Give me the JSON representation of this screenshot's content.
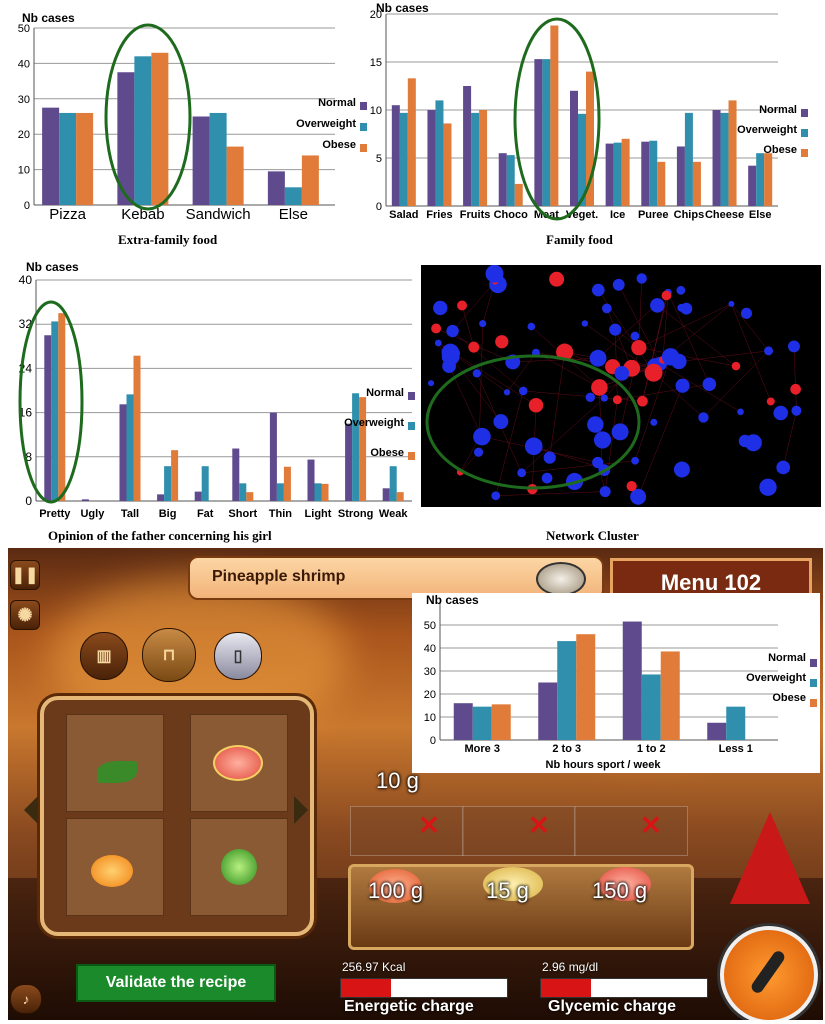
{
  "chart_data": [
    {
      "type": "bar",
      "title": "Extra-family food",
      "ylabel": "Nb cases",
      "ylim": [
        0,
        50
      ],
      "yticks": [
        0,
        10,
        20,
        30,
        40,
        50
      ],
      "categories": [
        "Pizza",
        "Kebab",
        "Sandwich",
        "Else"
      ],
      "series": [
        {
          "name": "Normal",
          "color": "#5e4a8c",
          "values": [
            27.5,
            37.5,
            25,
            9.5
          ]
        },
        {
          "name": "Overweight",
          "color": "#2f8fad",
          "values": [
            26,
            42,
            26,
            5
          ]
        },
        {
          "name": "Obese",
          "color": "#e07b39",
          "values": [
            26,
            43,
            16.5,
            14
          ]
        }
      ],
      "legend": "right",
      "grid": true,
      "highlight": "Kebab"
    },
    {
      "type": "bar",
      "title": "Family food",
      "ylabel": "Nb cases",
      "ylim": [
        0,
        20
      ],
      "yticks": [
        0,
        5,
        10,
        15,
        20
      ],
      "categories": [
        "Salad",
        "Fries",
        "Fruits",
        "Choco",
        "Meat",
        "Veget.",
        "Ice",
        "Puree",
        "Chips",
        "Cheese",
        "Else"
      ],
      "series": [
        {
          "name": "Normal",
          "color": "#5e4a8c",
          "values": [
            10.5,
            10,
            12.5,
            5.5,
            15.3,
            12,
            6.5,
            6.7,
            6.2,
            10,
            4.2
          ]
        },
        {
          "name": "Overweight",
          "color": "#2f8fad",
          "values": [
            9.7,
            11,
            9.7,
            5.3,
            15.3,
            9.6,
            6.6,
            6.8,
            9.7,
            9.7,
            5.5
          ]
        },
        {
          "name": "Obese",
          "color": "#e07b39",
          "values": [
            13.3,
            8.6,
            10,
            2.3,
            18.8,
            14,
            7,
            4.6,
            4.6,
            11,
            5.5
          ]
        }
      ],
      "legend": "right",
      "grid": true,
      "highlight": [
        "Meat",
        "Veget."
      ]
    },
    {
      "type": "bar",
      "title": "Opinion of the father concerning his girl",
      "ylabel": "Nb cases",
      "ylim": [
        0,
        40
      ],
      "yticks": [
        0,
        8,
        16,
        24,
        32,
        40
      ],
      "categories": [
        "Pretty",
        "Ugly",
        "Tall",
        "Big",
        "Fat",
        "Short",
        "Thin",
        "Light",
        "Strong",
        "Weak"
      ],
      "series": [
        {
          "name": "Normal",
          "color": "#5e4a8c",
          "values": [
            30,
            0.3,
            17.5,
            1.2,
            1.7,
            9.5,
            16,
            7.5,
            14,
            2.3
          ]
        },
        {
          "name": "Overweight",
          "color": "#2f8fad",
          "values": [
            32.5,
            0,
            19.3,
            6.3,
            6.3,
            3.2,
            3.2,
            3.2,
            19.5,
            6.3
          ]
        },
        {
          "name": "Obese",
          "color": "#e07b39",
          "values": [
            34,
            0,
            26.3,
            9.2,
            0,
            1.6,
            6.2,
            3.1,
            18.8,
            1.6
          ]
        }
      ],
      "legend": "right",
      "grid": true,
      "highlight": "Pretty"
    },
    {
      "type": "bar",
      "ylabel": "Nb cases",
      "xlabel": "Nb hours sport / week",
      "ylim": [
        0,
        60
      ],
      "yticks": [
        0,
        10,
        20,
        30,
        40,
        50
      ],
      "categories": [
        "More 3",
        "2 to 3",
        "1 to 2",
        "Less 1"
      ],
      "series": [
        {
          "name": "Normal",
          "color": "#5e4a8c",
          "values": [
            16,
            25,
            51.5,
            7.5
          ]
        },
        {
          "name": "Overweight",
          "color": "#2f8fad",
          "values": [
            14.5,
            43,
            28.5,
            14.5
          ]
        },
        {
          "name": "Obese",
          "color": "#e07b39",
          "values": [
            15.5,
            46,
            38.5,
            0
          ]
        }
      ],
      "legend": "right",
      "grid": true
    }
  ],
  "network": {
    "caption": "Network  Cluster",
    "node_colors": [
      "#1f2fe6",
      "#e8202a"
    ],
    "background": "#000000"
  },
  "game": {
    "dish": "Pineapple shrimp",
    "menu": "Menu 102",
    "grid_item_weight": "10 g",
    "tray_weights": [
      "100 g",
      "15 g",
      "150 g"
    ],
    "validate": "Validate the recipe",
    "energetic": {
      "value": "256.97 Kcal",
      "label": "Energetic charge",
      "level": 0.3
    },
    "glycemic": {
      "value": "2.96 mg/dl",
      "label": "Glycemic charge",
      "level": 0.3
    }
  }
}
